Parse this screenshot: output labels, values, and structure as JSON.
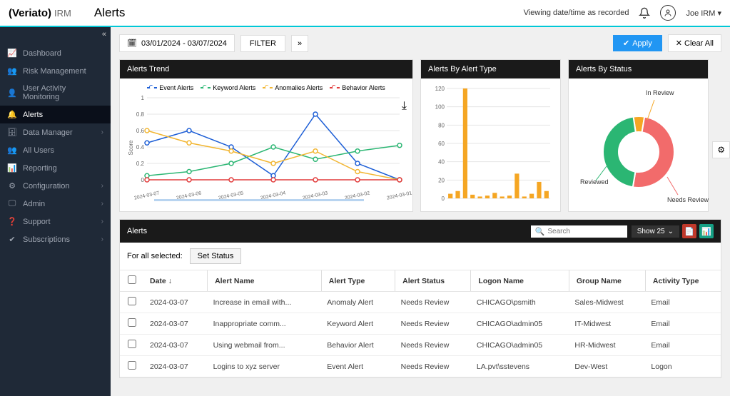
{
  "header": {
    "brand_open": "(",
    "brand_name": "Veriato",
    "brand_close": ")",
    "brand_sub": "IRM",
    "page_title": "Alerts",
    "viewing_label": "Viewing date/time as recorded",
    "user_name": "Joe IRM"
  },
  "sidebar": {
    "items": [
      {
        "icon": "chart-line-icon",
        "glyph": "📈",
        "label": "Dashboard",
        "expandable": false,
        "active": false
      },
      {
        "icon": "user-shield-icon",
        "glyph": "👥",
        "label": "Risk Management",
        "expandable": false,
        "active": false
      },
      {
        "icon": "user-monitor-icon",
        "glyph": "👤",
        "label": "User Activity Monitoring",
        "expandable": false,
        "active": false
      },
      {
        "icon": "bell-icon",
        "glyph": "🔔",
        "label": "Alerts",
        "expandable": false,
        "active": true
      },
      {
        "icon": "database-icon",
        "glyph": "🗄",
        "label": "Data Manager",
        "expandable": true,
        "active": false
      },
      {
        "icon": "users-icon",
        "glyph": "👥",
        "label": "All Users",
        "expandable": false,
        "active": false
      },
      {
        "icon": "report-icon",
        "glyph": "📊",
        "label": "Reporting",
        "expandable": false,
        "active": false
      },
      {
        "icon": "gear-icon",
        "glyph": "⚙",
        "label": "Configuration",
        "expandable": true,
        "active": false
      },
      {
        "icon": "admin-icon",
        "glyph": "🖵",
        "label": "Admin",
        "expandable": true,
        "active": false
      },
      {
        "icon": "support-icon",
        "glyph": "❓",
        "label": "Support",
        "expandable": true,
        "active": false
      },
      {
        "icon": "check-icon",
        "glyph": "✔",
        "label": "Subscriptions",
        "expandable": true,
        "active": false
      }
    ]
  },
  "toolbar": {
    "date_range": "03/01/2024 - 03/07/2024",
    "filter_label": "FILTER",
    "apply_label": "Apply",
    "clear_label": "Clear All"
  },
  "trend_chart": {
    "title": "Alerts Trend",
    "type": "line",
    "y_label": "Score",
    "y_ticks": [
      0,
      0.2,
      0.4,
      0.6,
      0.8,
      1
    ],
    "ylim": [
      0,
      1
    ],
    "x_labels": [
      "2024-03-07",
      "2024-03-06",
      "2024-03-05",
      "2024-03-04",
      "2024-03-03",
      "2024-03-02",
      "2024-03-01"
    ],
    "series": [
      {
        "name": "Event Alerts",
        "color": "#1e5fd6",
        "values": [
          0.45,
          0.6,
          0.4,
          0.05,
          0.8,
          0.2,
          0.0
        ]
      },
      {
        "name": "Keyword Alerts",
        "color": "#2bb673",
        "values": [
          0.05,
          0.1,
          0.2,
          0.4,
          0.25,
          0.35,
          0.42
        ]
      },
      {
        "name": "Anomalies Alerts",
        "color": "#f2b632",
        "values": [
          0.6,
          0.45,
          0.35,
          0.2,
          0.35,
          0.1,
          0.0
        ]
      },
      {
        "name": "Behavior Alerts",
        "color": "#e23b3b",
        "values": [
          0,
          0,
          0,
          0,
          0,
          0,
          0
        ]
      }
    ],
    "grid_color": "#e5e5e5",
    "background_color": "#ffffff",
    "label_fontsize": 8
  },
  "type_chart": {
    "title": "Alerts By Alert Type",
    "type": "bar",
    "y_ticks": [
      0,
      20,
      40,
      60,
      80,
      100,
      120
    ],
    "ylim": [
      0,
      120
    ],
    "bar_color": "#f5a623",
    "values": [
      5,
      8,
      120,
      4,
      2,
      3,
      6,
      2,
      3,
      27,
      2,
      5,
      18,
      8
    ],
    "grid_color": "#e5e5e5"
  },
  "status_chart": {
    "title": "Alerts By Status",
    "type": "donut",
    "segments": [
      {
        "label": "In Review",
        "color": "#f5a623",
        "fraction": 0.05
      },
      {
        "label": "Needs Review",
        "color": "#f26b6b",
        "fraction": 0.5
      },
      {
        "label": "Reviewed",
        "color": "#2bb673",
        "fraction": 0.45
      }
    ],
    "label_fontsize": 9
  },
  "alerts_table": {
    "title": "Alerts",
    "search_placeholder": "Search",
    "show_label": "Show 25",
    "bulk_label": "For all selected:",
    "set_status_label": "Set Status",
    "columns": [
      "Date",
      "Alert Name",
      "Alert Type",
      "Alert Status",
      "Logon Name",
      "Group Name",
      "Activity Type"
    ],
    "sort_col": "Date",
    "sort_dir": "desc",
    "rows": [
      {
        "date": "2024-03-07",
        "name": "Increase in email with...",
        "type": "Anomaly Alert",
        "status": "Needs Review",
        "logon": "CHICAGO\\psmith",
        "group": "Sales-Midwest",
        "activity": "Email"
      },
      {
        "date": "2024-03-07",
        "name": "Inappropriate comm...",
        "type": "Keyword Alert",
        "status": "Needs Review",
        "logon": "CHICAGO\\admin05",
        "group": "IT-Midwest",
        "activity": "Email"
      },
      {
        "date": "2024-03-07",
        "name": "Using webmail from...",
        "type": "Behavior  Alert",
        "status": "Needs Review",
        "logon": "CHICAGO\\admin05",
        "group": "HR-Midwest",
        "activity": "Email"
      },
      {
        "date": "2024-03-07",
        "name": "Logins to xyz server",
        "type": "Event Alert",
        "status": "Needs Review",
        "logon": "LA.pvt\\sstevens",
        "group": "Dev-West",
        "activity": "Logon"
      }
    ]
  }
}
